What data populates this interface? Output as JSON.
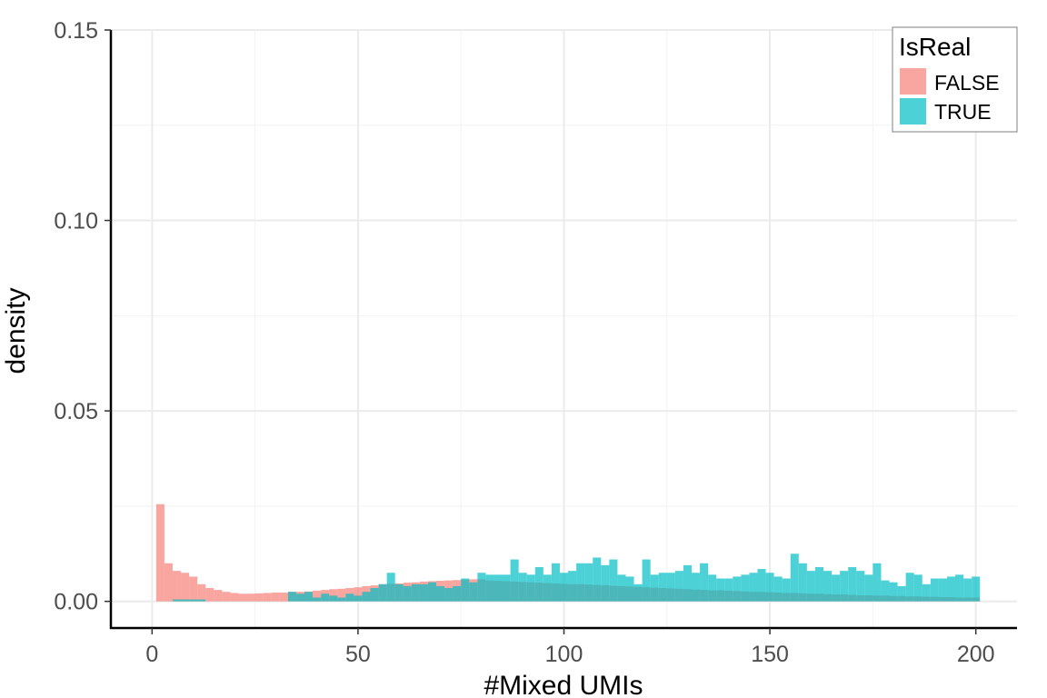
{
  "chart_data": {
    "type": "bar",
    "xlabel": "#Mixed UMIs",
    "ylabel": "density",
    "xlim": [
      -10,
      210
    ],
    "ylim": [
      -0.007,
      0.15
    ],
    "xticks": [
      "0",
      "50",
      "100",
      "150",
      "200"
    ],
    "xtick_values": [
      0,
      50,
      100,
      150,
      200
    ],
    "yticks": [
      "0.00",
      "0.05",
      "0.10",
      "0.15"
    ],
    "ytick_values": [
      0,
      0.05,
      0.1,
      0.15
    ],
    "x_minor_breaks": [
      25,
      75,
      125,
      175
    ],
    "y_minor_breaks": [
      0.025,
      0.075,
      0.125
    ],
    "grid": true,
    "binwidth": 2,
    "bin_start": 1,
    "legend": {
      "title": "IsReal",
      "position": "top-right",
      "entries": [
        "FALSE",
        "TRUE"
      ]
    },
    "series": [
      {
        "name": "FALSE",
        "color": "#F8766D",
        "opacity": 0.65,
        "values": [
          0.0255,
          0.01,
          0.008,
          0.0075,
          0.0065,
          0.0045,
          0.0035,
          0.003,
          0.0025,
          0.0022,
          0.002,
          0.002,
          0.0021,
          0.0022,
          0.0023,
          0.0023,
          0.0025,
          0.0025,
          0.0026,
          0.0028,
          0.003,
          0.0032,
          0.0033,
          0.0035,
          0.0037,
          0.004,
          0.0042,
          0.0045,
          0.0046,
          0.0047,
          0.0049,
          0.005,
          0.0052,
          0.0053,
          0.0054,
          0.0055,
          0.0056,
          0.0057,
          0.0058,
          0.0058,
          0.0055,
          0.0054,
          0.0053,
          0.0052,
          0.0051,
          0.005,
          0.0049,
          0.0048,
          0.0047,
          0.0046,
          0.0045,
          0.0045,
          0.0044,
          0.0043,
          0.0042,
          0.0041,
          0.004,
          0.0039,
          0.0038,
          0.0037,
          0.0036,
          0.0035,
          0.0034,
          0.0033,
          0.0032,
          0.0031,
          0.003,
          0.0029,
          0.0029,
          0.0028,
          0.0027,
          0.0026,
          0.0025,
          0.0025,
          0.0024,
          0.0023,
          0.0022,
          0.0022,
          0.0021,
          0.002,
          0.002,
          0.0019,
          0.0018,
          0.0018,
          0.0017,
          0.0016,
          0.0016,
          0.0015,
          0.0015,
          0.0014,
          0.0014,
          0.0013,
          0.0013,
          0.0012,
          0.0012,
          0.0011,
          0.0011,
          0.001,
          0.001,
          0.001
        ]
      },
      {
        "name": "TRUE",
        "color": "#00BFC4",
        "opacity": 0.7,
        "values": [
          0.0,
          0.0,
          0.0005,
          0.0005,
          0.0005,
          0.0005,
          0.0,
          0.0,
          0.0,
          0.0,
          0.0,
          0.0,
          0.0,
          0.0,
          0.0,
          0.0,
          0.0025,
          0.002,
          0.0025,
          0.001,
          0.002,
          0.0015,
          0.001,
          0.002,
          0.0015,
          0.0025,
          0.0035,
          0.0045,
          0.0075,
          0.0045,
          0.004,
          0.0045,
          0.0045,
          0.005,
          0.004,
          0.0035,
          0.004,
          0.006,
          0.005,
          0.0075,
          0.007,
          0.007,
          0.007,
          0.011,
          0.0075,
          0.007,
          0.009,
          0.007,
          0.01,
          0.0075,
          0.008,
          0.01,
          0.01,
          0.0115,
          0.0095,
          0.011,
          0.007,
          0.0065,
          0.0045,
          0.011,
          0.007,
          0.0075,
          0.0075,
          0.008,
          0.0095,
          0.0075,
          0.01,
          0.007,
          0.006,
          0.006,
          0.0065,
          0.007,
          0.0075,
          0.0085,
          0.0075,
          0.0065,
          0.006,
          0.0125,
          0.01,
          0.008,
          0.009,
          0.008,
          0.007,
          0.008,
          0.009,
          0.008,
          0.007,
          0.01,
          0.0055,
          0.005,
          0.004,
          0.0075,
          0.007,
          0.0045,
          0.006,
          0.006,
          0.0065,
          0.007,
          0.006,
          0.0065
        ]
      }
    ]
  }
}
